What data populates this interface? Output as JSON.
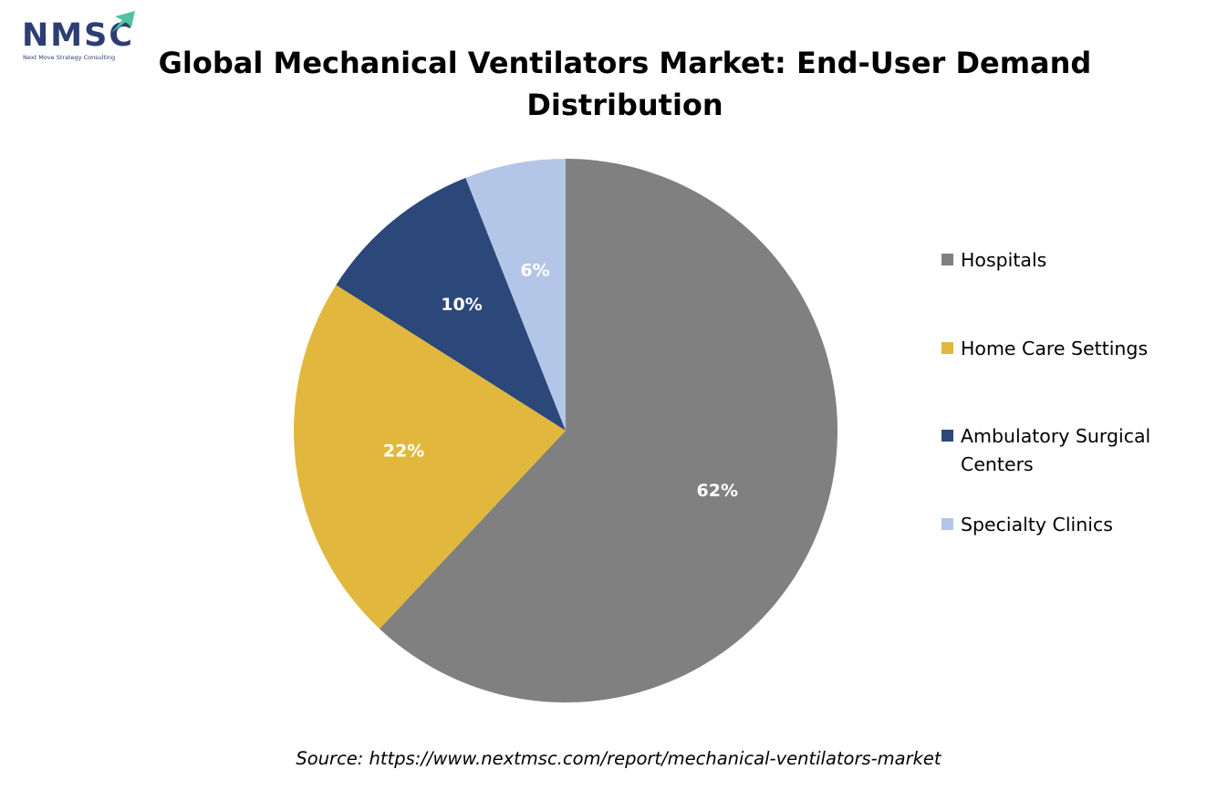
{
  "logo": {
    "text": "NMSC",
    "tagline": "Next Move Strategy Consulting"
  },
  "chart_data": {
    "type": "pie",
    "title": "Global Mechanical Ventilators Market: End-User Demand Distribution",
    "categories": [
      "Hospitals",
      "Home Care Settings",
      "Ambulatory Surgical Centers",
      "Specialty Clinics"
    ],
    "values": [
      62,
      22,
      10,
      6
    ],
    "labels": [
      "62%",
      "22%",
      "10%",
      "6%"
    ],
    "colors": [
      "#808080",
      "#e1b83d",
      "#2c477a",
      "#b4c6e7"
    ],
    "start": "top",
    "direction": "clockwise",
    "legend_position": "right"
  },
  "source": "Source: https://www.nextmsc.com/report/mechanical-ventilators-market"
}
